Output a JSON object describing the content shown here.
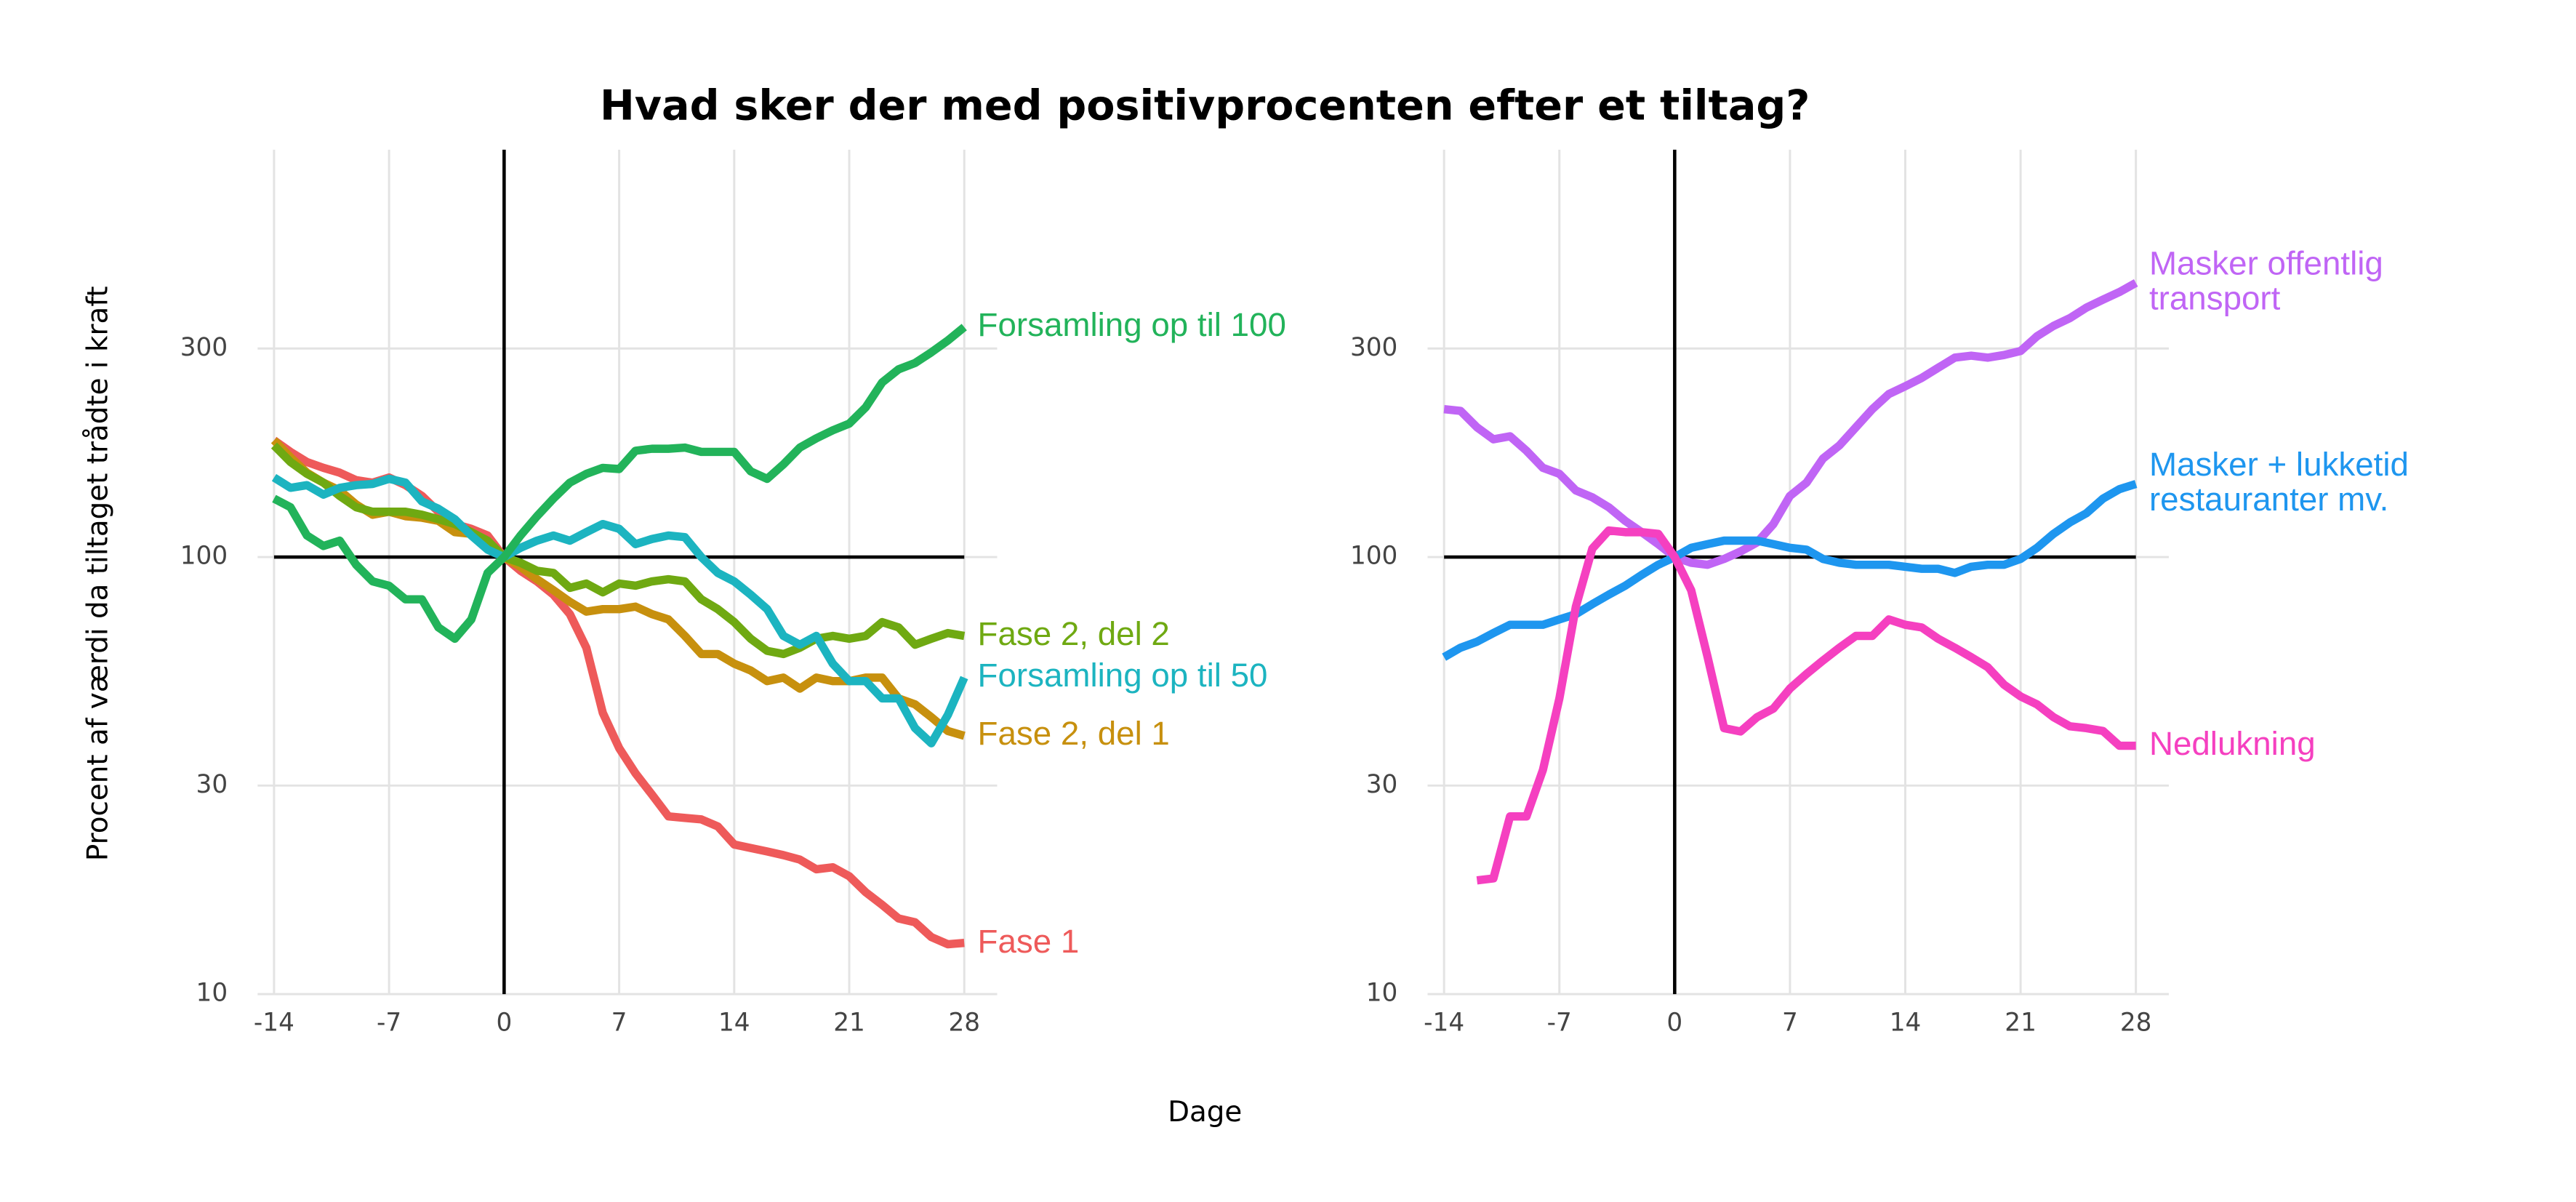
{
  "title": "Hvad sker der med positivprocenten efter et tiltag?",
  "xlabel": "Dage",
  "ylabel": "Procent af værdi da tiltaget trådte i kraft",
  "chart_data": [
    {
      "type": "line",
      "ylog": true,
      "grid": true,
      "xlim": [
        -15,
        30
      ],
      "ylim": [
        10,
        855
      ],
      "xticks": [
        -14,
        -7,
        0,
        7,
        14,
        21,
        28
      ],
      "yticks": [
        10,
        30,
        100,
        300
      ],
      "hline": 100,
      "vline": 0,
      "x": [
        -14,
        -13,
        -12,
        -11,
        -10,
        -9,
        -8,
        -7,
        -6,
        -5,
        -4,
        -3,
        -2,
        -1,
        0,
        1,
        2,
        3,
        4,
        5,
        6,
        7,
        8,
        9,
        10,
        11,
        12,
        13,
        14,
        15,
        16,
        17,
        18,
        19,
        20,
        21,
        22,
        23,
        24,
        25,
        26,
        27,
        28
      ],
      "series": [
        {
          "name": "Fase 1",
          "color": "#ee5a5a",
          "values": [
            185,
            174,
            165,
            160,
            156,
            150,
            148,
            152,
            146,
            138,
            127,
            119,
            116,
            112,
            100,
            93,
            88,
            82,
            74,
            62,
            44,
            36.5,
            32,
            28.6,
            25.5,
            25.3,
            25.1,
            24.2,
            22,
            21.6,
            21.2,
            20.8,
            20.3,
            19.3,
            19.5,
            18.6,
            17.1,
            16,
            14.9,
            14.6,
            13.5,
            13,
            13.1
          ]
        },
        {
          "name": "Fase 2, del 1",
          "color": "#c7900e",
          "values": [
            185,
            169,
            156,
            148,
            142,
            132,
            125,
            127,
            124,
            123,
            121,
            114,
            113,
            108,
            100,
            95,
            89,
            84,
            79,
            75,
            76,
            76,
            77,
            74,
            72,
            66,
            60,
            60,
            57,
            55,
            52,
            53,
            50,
            53,
            52,
            52,
            53,
            53,
            47.5,
            46,
            43,
            40,
            39
          ]
        },
        {
          "name": "Fase 2, del 2",
          "color": "#6fa912",
          "values": [
            180,
            165,
            155,
            148,
            138,
            130,
            127,
            127,
            127,
            125,
            122,
            119,
            114,
            109,
            100,
            97,
            93,
            92,
            85,
            87,
            83,
            87,
            86,
            88,
            89,
            88,
            80,
            76,
            71,
            65,
            61,
            60,
            62,
            65,
            66,
            65,
            66,
            71,
            69,
            63,
            65,
            67,
            66
          ]
        },
        {
          "name": "Forsamling op til 50",
          "color": "#1cb4c0",
          "values": [
            152,
            144,
            146,
            139,
            144,
            146,
            147,
            151,
            148,
            134,
            129,
            122,
            112,
            104,
            100,
            105,
            109,
            112,
            109,
            114,
            119,
            116,
            107,
            110,
            112,
            111,
            100,
            92,
            88,
            82,
            76,
            66,
            63,
            66,
            57,
            52,
            52,
            47.5,
            47.5,
            40.6,
            37.5,
            43.5,
            53
          ]
        },
        {
          "name": "Forsamling op til 100",
          "color": "#22b35a",
          "values": [
            136,
            130,
            112,
            106,
            109,
            96,
            88,
            86,
            80,
            80,
            69,
            65,
            72,
            92,
            100,
            112,
            124,
            136,
            148,
            155,
            160,
            159,
            175,
            177,
            177,
            178,
            174,
            174,
            174,
            157,
            151,
            163,
            178,
            187,
            195,
            202,
            220,
            251,
            269,
            278,
            294,
            313,
            336
          ]
        }
      ]
    },
    {
      "type": "line",
      "ylog": true,
      "grid": true,
      "xlim": [
        -15,
        30
      ],
      "ylim": [
        10,
        855
      ],
      "xticks": [
        -14,
        -7,
        0,
        7,
        14,
        21,
        28
      ],
      "yticks": [
        10,
        30,
        100,
        300
      ],
      "hline": 100,
      "vline": 0,
      "x": [
        -14,
        -13,
        -12,
        -11,
        -10,
        -9,
        -8,
        -7,
        -6,
        -5,
        -4,
        -3,
        -2,
        -1,
        0,
        1,
        2,
        3,
        4,
        5,
        6,
        7,
        8,
        9,
        10,
        11,
        12,
        13,
        14,
        15,
        16,
        17,
        18,
        19,
        20,
        21,
        22,
        23,
        24,
        25,
        26,
        27,
        28
      ],
      "series": [
        {
          "name": "Masker offentlig transport",
          "color": "#c065f5",
          "values": [
            218,
            216,
            198,
            186,
            189,
            175,
            160,
            155,
            142,
            137,
            130,
            121,
            114,
            107,
            100,
            97,
            96,
            99,
            103,
            108,
            119,
            138,
            148,
            168,
            180,
            198,
            218,
            236,
            246,
            257,
            271,
            286,
            289,
            286,
            290,
            296,
            320,
            338,
            352,
            372,
            388,
            404,
            424
          ]
        },
        {
          "name": "Masker + lukketid restauranter mv.",
          "color": "#1e96ef",
          "values": [
            59,
            62,
            64,
            67,
            70,
            70,
            70,
            72,
            74,
            78,
            82,
            86,
            91,
            96,
            100,
            105,
            107,
            109,
            109,
            109,
            107,
            105,
            104,
            99,
            97,
            96,
            96,
            96,
            95,
            94,
            94,
            92,
            95,
            96,
            96,
            99,
            105,
            113,
            120,
            126,
            136,
            143,
            147
          ]
        },
        {
          "name": "Nedlukning",
          "color": "#f540c0",
          "values": [
            null,
            null,
            18.2,
            18.4,
            25.5,
            25.5,
            32.6,
            47.5,
            77,
            104.5,
            115,
            114,
            114,
            113,
            100,
            84,
            59,
            40.6,
            39.9,
            43,
            45,
            50,
            54,
            58,
            62,
            66,
            66,
            72,
            70,
            69,
            65,
            62,
            59,
            56,
            51,
            48,
            46,
            43,
            41,
            40.6,
            40,
            37,
            37
          ]
        }
      ]
    }
  ]
}
